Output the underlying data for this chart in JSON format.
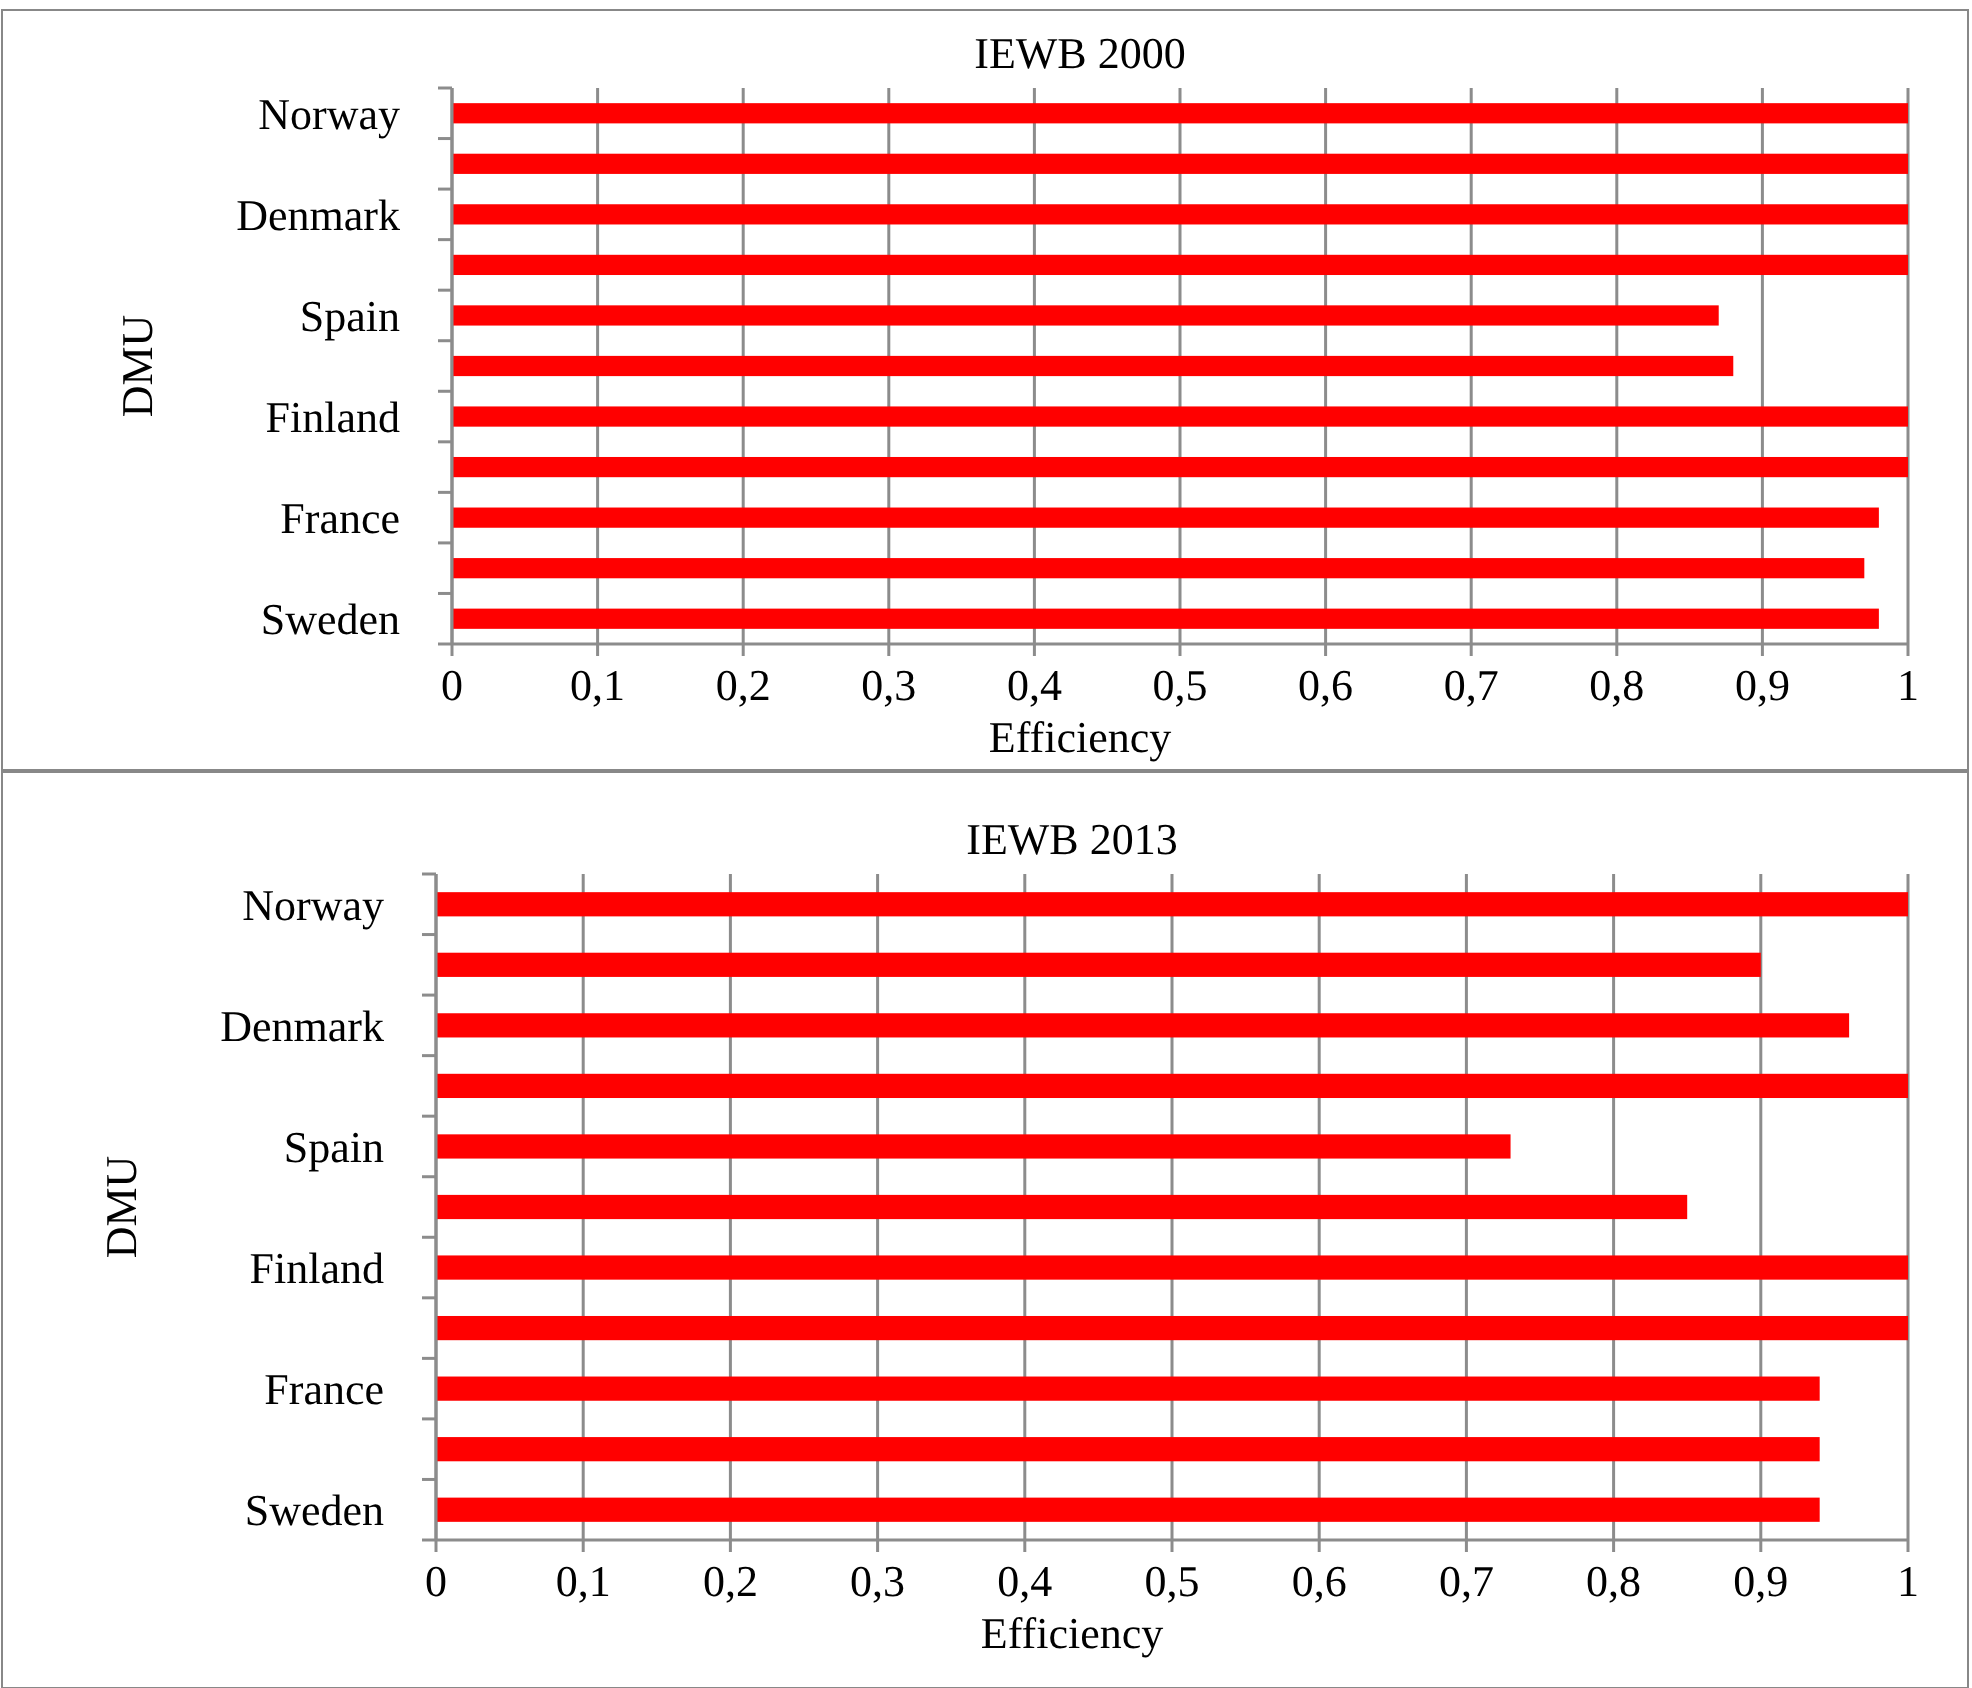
{
  "chart_data": [
    {
      "type": "bar",
      "orientation": "horizontal",
      "title": "IEWB 2000",
      "xlabel": "Efficiency",
      "ylabel": "DMU",
      "categories": [
        "Norway",
        null,
        "Denmark",
        null,
        "Spain",
        null,
        "Finland",
        null,
        "France",
        null,
        "Sweden"
      ],
      "series": [
        {
          "color": "#ff0000",
          "values": [
            1,
            1,
            1,
            1,
            0.87,
            0.88,
            1,
            1,
            0.98,
            0.97,
            0.98
          ]
        }
      ],
      "xlim": [
        0,
        1
      ],
      "xticks": [
        {
          "value": 0,
          "label": "0"
        },
        {
          "value": 0.1,
          "label": "0,1"
        },
        {
          "value": 0.2,
          "label": "0,2"
        },
        {
          "value": 0.3,
          "label": "0,3"
        },
        {
          "value": 0.4,
          "label": "0,4"
        },
        {
          "value": 0.5,
          "label": "0,5"
        },
        {
          "value": 0.6,
          "label": "0,6"
        },
        {
          "value": 0.7,
          "label": "0,7"
        },
        {
          "value": 0.8,
          "label": "0,8"
        },
        {
          "value": 0.9,
          "label": "0,9"
        },
        {
          "value": 1,
          "label": "1"
        }
      ],
      "grid": "x"
    },
    {
      "type": "bar",
      "orientation": "horizontal",
      "title": "IEWB 2013",
      "xlabel": "Efficiency",
      "ylabel": "DMU",
      "categories": [
        "Norway",
        null,
        "Denmark",
        null,
        "Spain",
        null,
        "Finland",
        null,
        "France",
        null,
        "Sweden"
      ],
      "series": [
        {
          "color": "#ff0000",
          "values": [
            1,
            0.9,
            0.96,
            1,
            0.73,
            0.85,
            1,
            1,
            0.94,
            0.94,
            0.94
          ]
        }
      ],
      "xlim": [
        0,
        1
      ],
      "xticks": [
        {
          "value": 0,
          "label": "0"
        },
        {
          "value": 0.1,
          "label": "0,1"
        },
        {
          "value": 0.2,
          "label": "0,2"
        },
        {
          "value": 0.3,
          "label": "0,3"
        },
        {
          "value": 0.4,
          "label": "0,4"
        },
        {
          "value": 0.5,
          "label": "0,5"
        },
        {
          "value": 0.6,
          "label": "0,6"
        },
        {
          "value": 0.7,
          "label": "0,7"
        },
        {
          "value": 0.8,
          "label": "0,8"
        },
        {
          "value": 0.9,
          "label": "0,9"
        },
        {
          "value": 1,
          "label": "1"
        }
      ],
      "grid": "x"
    }
  ]
}
